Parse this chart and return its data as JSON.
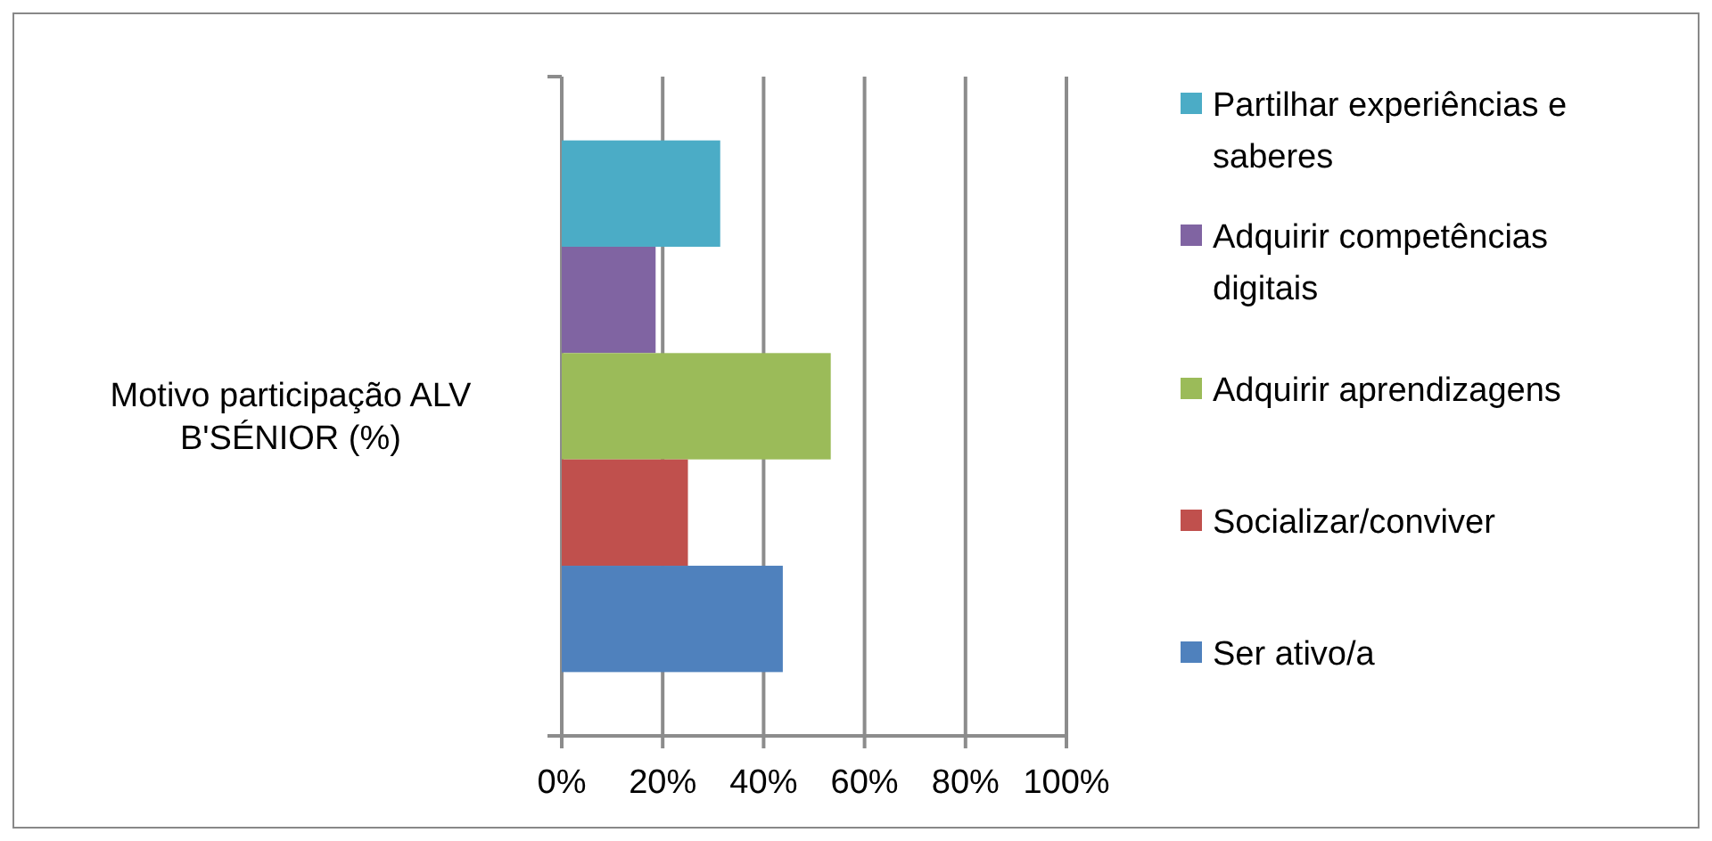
{
  "chart_data": {
    "type": "bar",
    "orientation": "horizontal",
    "stacked": true,
    "ylabel": "Motivo participação ALV B'SÉNIOR (%)",
    "categories": [
      null,
      null,
      null,
      null,
      null
    ],
    "series": [
      {
        "name": "Partilhar experiências e saberes",
        "color": "#4bacc6",
        "values": [
          31.4,
          null,
          null,
          null,
          null
        ]
      },
      {
        "name": "Adquirir competências digitais",
        "color": "#8064a2",
        "values": [
          null,
          18.6,
          null,
          null,
          null
        ]
      },
      {
        "name": "Adquirir aprendizagens",
        "color": "#9bbb59",
        "values": [
          null,
          null,
          53.3,
          null,
          null
        ]
      },
      {
        "name": "Socializar/conviver",
        "color": "#c0504d",
        "values": [
          null,
          null,
          null,
          25,
          null
        ]
      },
      {
        "name": "Ser ativo/a",
        "color": "#4f81bd",
        "values": [
          null,
          null,
          null,
          null,
          43.8
        ]
      }
    ],
    "xlim": [
      0,
      100
    ],
    "xticks": [
      {
        "value": 0,
        "label": "0%"
      },
      {
        "value": 20,
        "label": "20%"
      },
      {
        "value": 40,
        "label": "40%"
      },
      {
        "value": 60,
        "label": "60%"
      },
      {
        "value": 80,
        "label": "80%"
      },
      {
        "value": 100,
        "label": "100%"
      }
    ],
    "grid": "x",
    "legend": "right"
  }
}
